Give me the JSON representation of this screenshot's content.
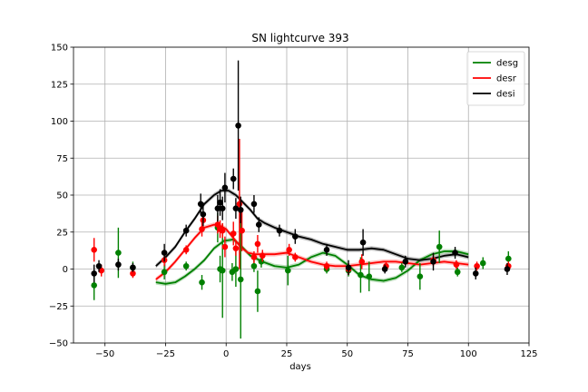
{
  "chart_data": {
    "type": "scatter",
    "title": "SN lightcurve 393",
    "xlabel": "days",
    "ylabel": "",
    "xlim": [
      -63,
      125
    ],
    "ylim": [
      -50,
      150
    ],
    "xticks": [
      -50,
      -25,
      0,
      25,
      50,
      75,
      100,
      125
    ],
    "yticks": [
      -50,
      -25,
      0,
      25,
      50,
      75,
      100,
      125,
      150
    ],
    "grid": true,
    "legend_position": "top-right",
    "series": [
      {
        "name": "desg",
        "color": "#008000",
        "points": [
          {
            "x": -54.5,
            "y": -11,
            "err": 10
          },
          {
            "x": -44.5,
            "y": 11,
            "err": 17
          },
          {
            "x": -38.5,
            "y": 1,
            "err": 4
          },
          {
            "x": -25.5,
            "y": -2,
            "err": 5
          },
          {
            "x": -16.5,
            "y": 2,
            "err": 3
          },
          {
            "x": -10,
            "y": -9,
            "err": 5
          },
          {
            "x": -3.5,
            "y": 28,
            "err": 10
          },
          {
            "x": -2.5,
            "y": 0,
            "err": 9
          },
          {
            "x": -1.5,
            "y": -1,
            "err": 32
          },
          {
            "x": 2.5,
            "y": -2,
            "err": 6
          },
          {
            "x": 4,
            "y": 0,
            "err": 12
          },
          {
            "x": 6,
            "y": -7,
            "err": 40
          },
          {
            "x": 11.5,
            "y": 2,
            "err": 4
          },
          {
            "x": 13,
            "y": -15,
            "err": 14
          },
          {
            "x": 14.5,
            "y": 5,
            "err": 4
          },
          {
            "x": 25.5,
            "y": -1,
            "err": 10
          },
          {
            "x": 41.5,
            "y": 0,
            "err": 3
          },
          {
            "x": 50.5,
            "y": -1,
            "err": 4
          },
          {
            "x": 55.5,
            "y": -4,
            "err": 12
          },
          {
            "x": 59,
            "y": -5,
            "err": 10
          },
          {
            "x": 72.5,
            "y": 1,
            "err": 3
          },
          {
            "x": 80,
            "y": -5,
            "err": 9
          },
          {
            "x": 88,
            "y": 15,
            "err": 11
          },
          {
            "x": 95.5,
            "y": -2,
            "err": 3
          },
          {
            "x": 106,
            "y": 4,
            "err": 4
          },
          {
            "x": 116.5,
            "y": 7,
            "err": 5
          }
        ],
        "model": {
          "x": [
            -29,
            -25,
            -21,
            -17,
            -13,
            -9,
            -5,
            -1,
            3,
            6,
            10,
            15,
            20,
            25,
            30,
            35,
            40,
            45,
            50,
            55,
            60,
            65,
            70,
            75,
            80,
            85,
            90,
            95,
            100
          ],
          "y": [
            -9,
            -10,
            -9,
            -5,
            0,
            6,
            14,
            19,
            20,
            16,
            9,
            5,
            2,
            1,
            3,
            8,
            11,
            9,
            3,
            -4,
            -7,
            -8,
            -6,
            -1,
            6,
            10,
            12,
            12,
            10
          ],
          "band": 1.5
        }
      },
      {
        "name": "desr",
        "color": "#ff0000",
        "points": [
          {
            "x": -54.5,
            "y": 13,
            "err": 8
          },
          {
            "x": -51.5,
            "y": -1,
            "err": 4
          },
          {
            "x": -38.5,
            "y": -3,
            "err": 3
          },
          {
            "x": -25.5,
            "y": 6,
            "err": 4
          },
          {
            "x": -16.5,
            "y": 13,
            "err": 3
          },
          {
            "x": -10,
            "y": 27,
            "err": 5
          },
          {
            "x": -9.5,
            "y": 33,
            "err": 5
          },
          {
            "x": -3.5,
            "y": 30,
            "err": 6
          },
          {
            "x": -2.5,
            "y": 27,
            "err": 6
          },
          {
            "x": -1.5,
            "y": 26,
            "err": 5
          },
          {
            "x": -0.5,
            "y": 15,
            "err": 7
          },
          {
            "x": 3,
            "y": 24,
            "err": 8
          },
          {
            "x": 4,
            "y": 14,
            "err": 5
          },
          {
            "x": 5.5,
            "y": 44,
            "err": 44
          },
          {
            "x": 6.5,
            "y": 26,
            "err": 14
          },
          {
            "x": 11.5,
            "y": 8,
            "err": 4
          },
          {
            "x": 13,
            "y": 17,
            "err": 6
          },
          {
            "x": 15,
            "y": 9,
            "err": 4
          },
          {
            "x": 26,
            "y": 13,
            "err": 4
          },
          {
            "x": 28.5,
            "y": 8,
            "err": 3
          },
          {
            "x": 41.5,
            "y": 2,
            "err": 3
          },
          {
            "x": 50.5,
            "y": 0,
            "err": 4
          },
          {
            "x": 56,
            "y": 5,
            "err": 5
          },
          {
            "x": 66,
            "y": 2,
            "err": 3
          },
          {
            "x": 85.5,
            "y": 6,
            "err": 4
          },
          {
            "x": 95,
            "y": 3,
            "err": 3
          },
          {
            "x": 103.5,
            "y": 2,
            "err": 3
          },
          {
            "x": 116.5,
            "y": 2,
            "err": 3
          }
        ],
        "model": {
          "x": [
            -29,
            -25,
            -21,
            -17,
            -13,
            -9,
            -5,
            -2,
            0,
            3,
            6,
            9,
            12,
            15,
            20,
            25,
            30,
            35,
            40,
            45,
            50,
            55,
            60,
            65,
            70,
            75,
            80,
            85,
            90,
            95,
            100
          ],
          "y": [
            -7,
            -2,
            5,
            13,
            21,
            28,
            30,
            29,
            27,
            21,
            15,
            11,
            10,
            10,
            10,
            11,
            8,
            5,
            3,
            2,
            2,
            3,
            4,
            5,
            5,
            4,
            3,
            4,
            5,
            4,
            3
          ],
          "band": 1.5
        }
      },
      {
        "name": "desi",
        "color": "#000000",
        "points": [
          {
            "x": -54.5,
            "y": -3,
            "err": 6
          },
          {
            "x": -52.5,
            "y": 2,
            "err": 4
          },
          {
            "x": -44.5,
            "y": 3,
            "err": 4
          },
          {
            "x": -38.5,
            "y": 1,
            "err": 3
          },
          {
            "x": -25.5,
            "y": 11,
            "err": 6
          },
          {
            "x": -16.5,
            "y": 26,
            "err": 4
          },
          {
            "x": -10.5,
            "y": 44,
            "err": 7
          },
          {
            "x": -9.5,
            "y": 37,
            "err": 8
          },
          {
            "x": -3.5,
            "y": 41,
            "err": 9
          },
          {
            "x": -2.5,
            "y": 45,
            "err": 9
          },
          {
            "x": -1.5,
            "y": 41,
            "err": 8
          },
          {
            "x": -0.5,
            "y": 55,
            "err": 10
          },
          {
            "x": 3,
            "y": 61,
            "err": 7
          },
          {
            "x": 4,
            "y": 41,
            "err": 7
          },
          {
            "x": 5,
            "y": 97,
            "err": 44
          },
          {
            "x": 6,
            "y": 40,
            "err": 9
          },
          {
            "x": 11.5,
            "y": 44,
            "err": 6
          },
          {
            "x": 13.5,
            "y": 30,
            "err": 5
          },
          {
            "x": 22,
            "y": 26,
            "err": 4
          },
          {
            "x": 28.5,
            "y": 22,
            "err": 5
          },
          {
            "x": 41.5,
            "y": 13,
            "err": 4
          },
          {
            "x": 50.5,
            "y": 1,
            "err": 5
          },
          {
            "x": 56.5,
            "y": 18,
            "err": 9
          },
          {
            "x": 65.5,
            "y": 0,
            "err": 3
          },
          {
            "x": 74,
            "y": 5,
            "err": 4
          },
          {
            "x": 85.5,
            "y": 5,
            "err": 6
          },
          {
            "x": 94.5,
            "y": 11,
            "err": 4
          },
          {
            "x": 103,
            "y": -3,
            "err": 4
          },
          {
            "x": 116,
            "y": 0,
            "err": 4
          }
        ],
        "model": {
          "x": [
            -29,
            -25,
            -21,
            -17,
            -13,
            -9,
            -5,
            -2,
            1,
            4,
            7,
            10,
            13,
            16,
            20,
            25,
            30,
            35,
            40,
            45,
            50,
            55,
            60,
            65,
            70,
            75,
            80,
            85,
            90,
            95,
            100
          ],
          "y": [
            2,
            8,
            15,
            25,
            34,
            44,
            50,
            53,
            53,
            50,
            45,
            40,
            34,
            31,
            28,
            25,
            22,
            20,
            17,
            15,
            13,
            13,
            14,
            13,
            10,
            7,
            6,
            7,
            9,
            10,
            8
          ],
          "band": 1.5
        }
      }
    ]
  }
}
